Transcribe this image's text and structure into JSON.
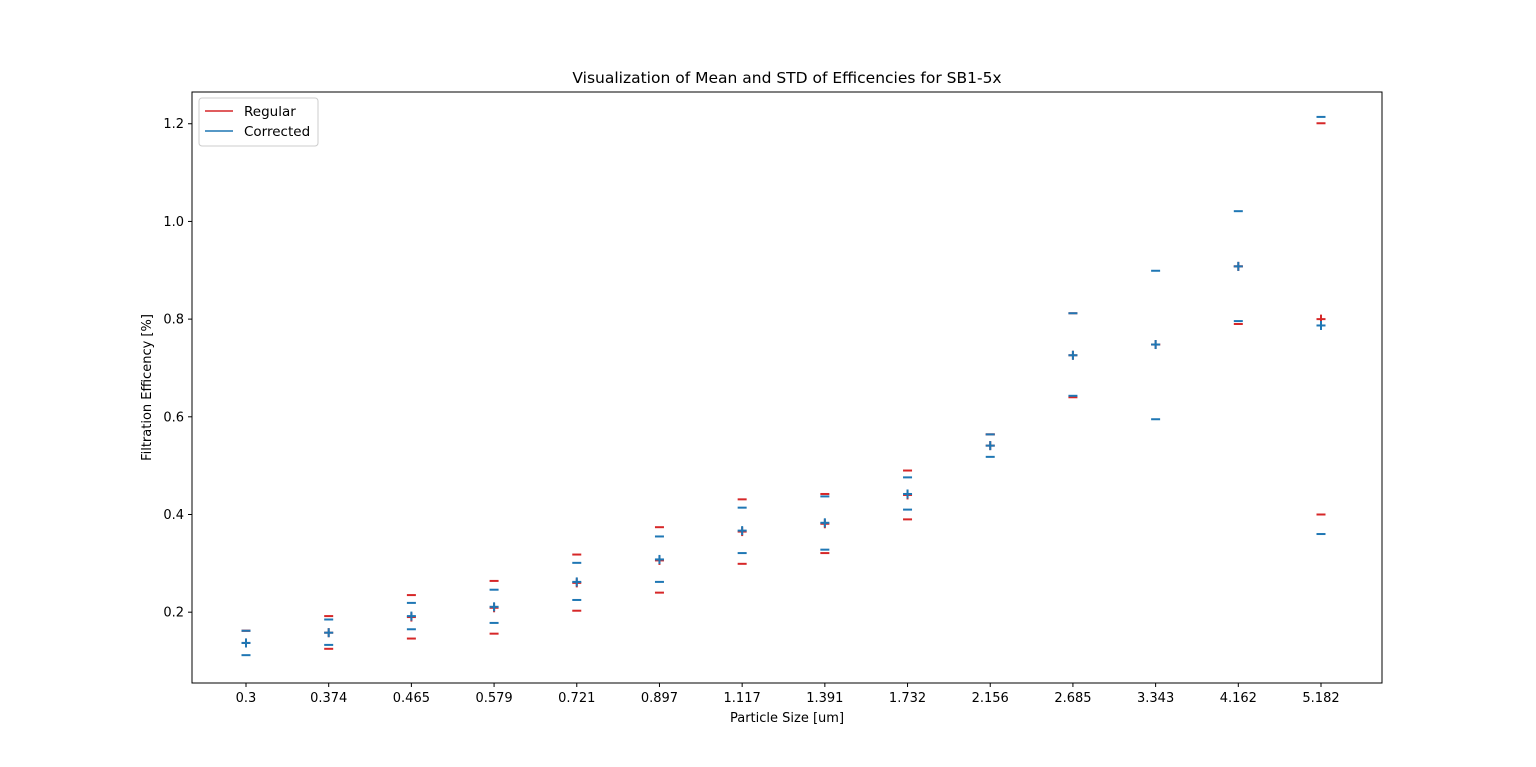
{
  "chart_data": {
    "type": "scatter",
    "title": "Visualization of Mean and STD of Efficencies for SB1-5x",
    "xlabel": "Particle Size [um]",
    "ylabel": "Filtration Efficency [%]",
    "categories": [
      "0.3",
      "0.374",
      "0.465",
      "0.579",
      "0.721",
      "0.897",
      "1.117",
      "1.391",
      "1.732",
      "2.156",
      "2.685",
      "3.343",
      "4.162",
      "5.182"
    ],
    "ylim": [
      0.055,
      1.265
    ],
    "yticks": [
      "0.2",
      "0.4",
      "0.6",
      "0.8",
      "1.0",
      "1.2"
    ],
    "ytick_values": [
      0.2,
      0.4,
      0.6,
      0.8,
      1.0,
      1.2
    ],
    "grid": false,
    "legend_position": "top-left",
    "series": [
      {
        "name": "Regular",
        "color": "#d62728",
        "mean": [
          0.137,
          0.158,
          0.19,
          0.209,
          0.26,
          0.306,
          0.365,
          0.381,
          0.44,
          0.541,
          0.726,
          0.748,
          0.908,
          0.8
        ],
        "upper": [
          0.162,
          0.192,
          0.235,
          0.264,
          0.318,
          0.374,
          0.431,
          0.442,
          0.49,
          0.564,
          0.812,
          0.748,
          0.908,
          1.201
        ],
        "lower": [
          0.162,
          0.125,
          0.146,
          0.156,
          0.203,
          0.24,
          0.299,
          0.321,
          0.39,
          0.564,
          0.64,
          0.748,
          0.79,
          0.4
        ]
      },
      {
        "name": "Corrected",
        "color": "#1f77b4",
        "mean": [
          0.137,
          0.158,
          0.192,
          0.211,
          0.262,
          0.308,
          0.367,
          0.383,
          0.442,
          0.541,
          0.726,
          0.748,
          0.908,
          0.787
        ],
        "upper": [
          0.162,
          0.185,
          0.219,
          0.246,
          0.301,
          0.355,
          0.414,
          0.437,
          0.476,
          0.564,
          0.812,
          0.899,
          1.021,
          1.214
        ],
        "lower": [
          0.112,
          0.133,
          0.165,
          0.178,
          0.225,
          0.262,
          0.321,
          0.328,
          0.41,
          0.518,
          0.643,
          0.595,
          0.796,
          0.36
        ]
      }
    ]
  }
}
